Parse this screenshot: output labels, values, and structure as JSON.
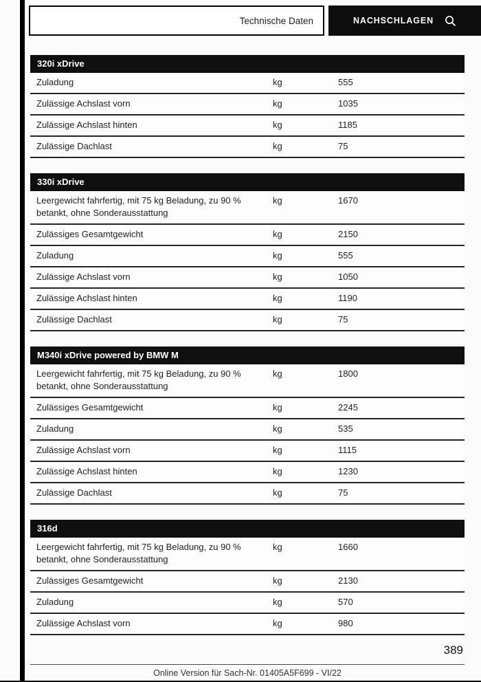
{
  "header": {
    "section_title": "Technische Daten",
    "lookup_label": "NACHSCHLAGEN",
    "lookup_icon": "search-icon"
  },
  "tables": [
    {
      "title": "320i xDrive",
      "rows": [
        {
          "label": "Zuladung",
          "unit": "kg",
          "value": "555"
        },
        {
          "label": "Zulässige Achslast vorn",
          "unit": "kg",
          "value": "1035"
        },
        {
          "label": "Zulässige Achslast hinten",
          "unit": "kg",
          "value": "1185"
        },
        {
          "label": "Zulässige Dachlast",
          "unit": "kg",
          "value": "75"
        }
      ]
    },
    {
      "title": "330i xDrive",
      "rows": [
        {
          "label": "Leergewicht fahrfertig, mit 75 kg Beladung, zu 90 % betankt, ohne Sonderausstattung",
          "unit": "kg",
          "value": "1670"
        },
        {
          "label": "Zulässiges Gesamtgewicht",
          "unit": "kg",
          "value": "2150"
        },
        {
          "label": "Zuladung",
          "unit": "kg",
          "value": "555"
        },
        {
          "label": "Zulässige Achslast vorn",
          "unit": "kg",
          "value": "1050"
        },
        {
          "label": "Zulässige Achslast hinten",
          "unit": "kg",
          "value": "1190"
        },
        {
          "label": "Zulässige Dachlast",
          "unit": "kg",
          "value": "75"
        }
      ]
    },
    {
      "title": "M340i xDrive powered by BMW M",
      "rows": [
        {
          "label": "Leergewicht fahrfertig, mit 75 kg Beladung, zu 90 % betankt, ohne Sonderausstattung",
          "unit": "kg",
          "value": "1800"
        },
        {
          "label": "Zulässiges Gesamtgewicht",
          "unit": "kg",
          "value": "2245"
        },
        {
          "label": "Zuladung",
          "unit": "kg",
          "value": "535"
        },
        {
          "label": "Zulässige Achslast vorn",
          "unit": "kg",
          "value": "1115"
        },
        {
          "label": "Zulässige Achslast hinten",
          "unit": "kg",
          "value": "1230"
        },
        {
          "label": "Zulässige Dachlast",
          "unit": "kg",
          "value": "75"
        }
      ]
    },
    {
      "title": "316d",
      "rows": [
        {
          "label": "Leergewicht fahrfertig, mit 75 kg Beladung, zu 90 % betankt, ohne Sonderausstattung",
          "unit": "kg",
          "value": "1660"
        },
        {
          "label": "Zulässiges Gesamtgewicht",
          "unit": "kg",
          "value": "2130"
        },
        {
          "label": "Zuladung",
          "unit": "kg",
          "value": "570"
        },
        {
          "label": "Zulässige Achslast vorn",
          "unit": "kg",
          "value": "980"
        }
      ]
    }
  ],
  "footer": {
    "page_number": "389",
    "note": "Online Version für Sach-Nr. 01405A5F699 - VI/22"
  },
  "colors": {
    "header_bar": "#0f0f0f",
    "row_rule": "#242424"
  }
}
